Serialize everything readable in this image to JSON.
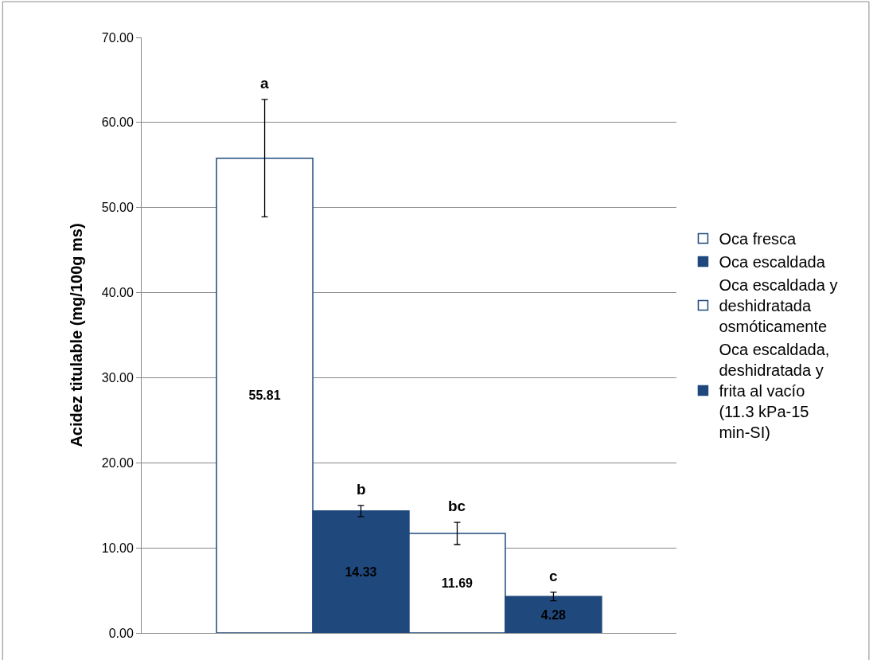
{
  "chart_data": {
    "type": "bar",
    "ylabel": "Acidez titulable (mg/100g ms)",
    "categories": [
      null
    ],
    "series": [
      {
        "name": "Oca fresca",
        "color": "#ffffff",
        "values": [
          55.81
        ],
        "errors": [
          6.9
        ]
      },
      {
        "name": "Oca escaldada",
        "color": "#1f497d",
        "values": [
          14.33
        ],
        "errors": [
          0.65
        ]
      },
      {
        "name": "Oca escaldada y deshidratada osmóticamente",
        "color": "#ffffff",
        "values": [
          11.69
        ],
        "errors": [
          1.3
        ]
      },
      {
        "name": "Oca escaldada, deshidratada y frita al vacío (11.3 kPa-15 min-SI)",
        "color": "#1f497d",
        "values": [
          4.28
        ],
        "errors": [
          0.5
        ]
      }
    ],
    "annotations": [
      "a",
      "b",
      "bc",
      "c"
    ],
    "ylim": [
      0,
      70
    ],
    "yticks": [
      {
        "value": 0,
        "label": "0.00"
      },
      {
        "value": 10,
        "label": "10.00"
      },
      {
        "value": 20,
        "label": "20.00"
      },
      {
        "value": 30,
        "label": "30.00"
      },
      {
        "value": 40,
        "label": "40.00"
      },
      {
        "value": 50,
        "label": "50.00"
      },
      {
        "value": 60,
        "label": "60.00"
      },
      {
        "value": 70,
        "label": "70.00"
      }
    ],
    "grid": "y",
    "legend": "right",
    "data_labels": true
  }
}
